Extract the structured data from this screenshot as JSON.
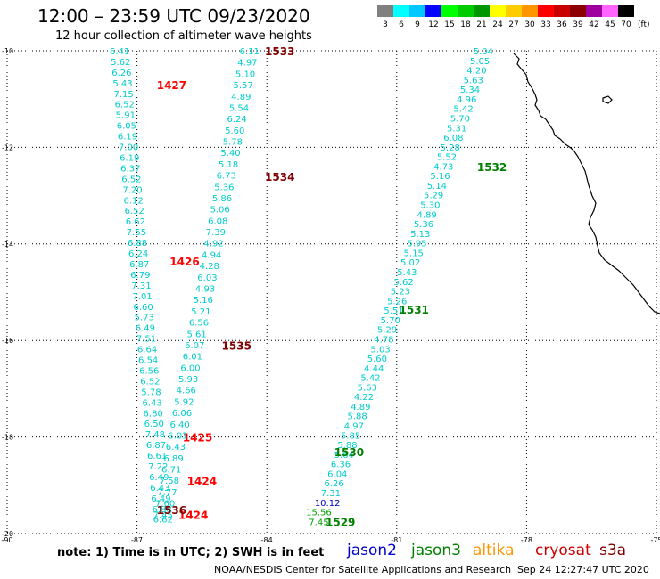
{
  "header": {
    "title": "12:00 – 23:59 UTC 09/23/2020",
    "subtitle": "12 hour collection of altimeter wave heights"
  },
  "legend": {
    "unit": "(ft)",
    "bins": [
      {
        "label": "3",
        "color": "#808080"
      },
      {
        "label": "6",
        "color": "#00ffff"
      },
      {
        "label": "9",
        "color": "#00c8ff"
      },
      {
        "label": "12",
        "color": "#0000ff"
      },
      {
        "label": "15",
        "color": "#00ff00"
      },
      {
        "label": "18",
        "color": "#00cc00"
      },
      {
        "label": "21",
        "color": "#009600"
      },
      {
        "label": "24",
        "color": "#ffff00"
      },
      {
        "label": "27",
        "color": "#ffcc00"
      },
      {
        "label": "30",
        "color": "#ff9600"
      },
      {
        "label": "33",
        "color": "#ff0000"
      },
      {
        "label": "36",
        "color": "#c80000"
      },
      {
        "label": "39",
        "color": "#8c0000"
      },
      {
        "label": "42",
        "color": "#a000a0"
      },
      {
        "label": "45",
        "color": "#ff64ff"
      },
      {
        "label": "70",
        "color": "#000000"
      }
    ]
  },
  "axes": {
    "lat": [
      {
        "label": "-10",
        "value": -10
      },
      {
        "label": "-12",
        "value": -12
      },
      {
        "label": "-14",
        "value": -14
      },
      {
        "label": "-16",
        "value": -16
      },
      {
        "label": "-18",
        "value": -18
      },
      {
        "label": "-20",
        "value": -20
      }
    ],
    "lon": [
      {
        "label": "-90",
        "value": -90
      },
      {
        "label": "-87",
        "value": -87
      },
      {
        "label": "-84",
        "value": -84
      },
      {
        "label": "-81",
        "value": -81
      },
      {
        "label": "-78",
        "value": -78
      },
      {
        "label": "-75",
        "value": -75
      }
    ]
  },
  "colors": {
    "cyan_swh": "#00cccc",
    "green_swh": "#00a000",
    "blue_swh": "#0000cc",
    "time_red": "#ff0000",
    "time_maroon": "#800000",
    "time_green": "#008000"
  },
  "tracks": [
    {
      "name": "track-1427-1424",
      "start": [
        -87.4,
        -10.0
      ],
      "end": [
        -86.4,
        -19.7
      ],
      "values": [
        "6.41",
        "5.62",
        "6.26",
        "5.43",
        "7.15",
        "6.52",
        "5.91",
        "6.05",
        "6.19",
        "7.00",
        "6.19",
        "6.37",
        "6.52",
        "7.20",
        "6.12",
        "6.52",
        "6.62",
        "7.55",
        "6.88",
        "6.24",
        "6.87",
        "6.79",
        "7.31",
        "7.01",
        "6.60",
        "5.73",
        "6.49",
        "7.51",
        "6.64",
        "6.54",
        "6.56",
        "6.52",
        "5.78",
        "6.43",
        "6.80",
        "6.50",
        "7.48",
        "6.87",
        "6.61",
        "7.22",
        "6.49",
        "6.43",
        "6.49",
        "6.88",
        "6.62"
      ],
      "color": "#00cccc",
      "times": [
        {
          "label": "1427",
          "at": [
            -86.2,
            -10.7
          ],
          "color": "#ff0000"
        },
        {
          "label": "1426",
          "at": [
            -85.9,
            -14.35
          ],
          "color": "#ff0000"
        },
        {
          "label": "1425",
          "at": [
            -85.6,
            -18.0
          ],
          "color": "#ff0000"
        },
        {
          "label": "1424",
          "at": [
            -85.5,
            -18.9
          ],
          "color": "#ff0000"
        },
        {
          "label": "1424",
          "at": [
            -85.7,
            -19.6
          ],
          "color": "#ff0000"
        }
      ]
    },
    {
      "name": "track-1533-1536",
      "start": [
        -84.4,
        -10.0
      ],
      "end": [
        -86.4,
        -19.6
      ],
      "values": [
        "6.11",
        "4.97",
        "5.10",
        "5.57",
        "4.89",
        "5.54",
        "6.24",
        "5.60",
        "5.78",
        "5.40",
        "5.18",
        "6.73",
        "5.36",
        "5.86",
        "5.06",
        "6.08",
        "7.39",
        "4.92",
        "4.94",
        "4.28",
        "6.03",
        "4.93",
        "5.16",
        "5.21",
        "6.56",
        "5.61",
        "6.07",
        "6.01",
        "6.00",
        "5.93",
        "4.66",
        "5.92",
        "6.06",
        "6.40",
        "6.01",
        "6.43",
        "6.89",
        "6.71",
        "7.58",
        "7.77",
        "7.60",
        "7.45"
      ],
      "color": "#00cccc",
      "times": [
        {
          "label": "1533",
          "at": [
            -83.7,
            -10.0
          ],
          "color": "#800000"
        },
        {
          "label": "1534",
          "at": [
            -83.7,
            -12.6
          ],
          "color": "#800000"
        },
        {
          "label": "1535",
          "at": [
            -84.7,
            -16.1
          ],
          "color": "#800000"
        },
        {
          "label": "1536",
          "at": [
            -86.2,
            -19.5
          ],
          "color": "#800000"
        }
      ]
    },
    {
      "name": "track-1532-1529",
      "start": [
        -79.0,
        -10.0
      ],
      "end": [
        -82.6,
        -19.35
      ],
      "values": [
        "5.04",
        "5.05",
        "4.20",
        "5.63",
        "5.34",
        "4.96",
        "5.42",
        "5.70",
        "5.31",
        "6.08",
        "5.28",
        "5.52",
        "4.73",
        "5.16",
        "5.14",
        "5.29",
        "5.30",
        "4.89",
        "5.36",
        "5.13",
        "5.95",
        "5.15",
        "5.02",
        "5.43",
        "5.62",
        "5.23",
        "5.26",
        "5.51",
        "5.70",
        "5.29",
        "4.78",
        "5.03",
        "5.60",
        "4.44",
        "5.42",
        "5.63",
        "4.22",
        "4.89",
        "5.88",
        "4.97",
        "5.85",
        "5.88",
        "5.64",
        "6.36",
        "6.04",
        "6.26",
        "7.31",
        "10.12"
      ],
      "color": "#00cccc",
      "tail": [
        {
          "label": "15.56",
          "at": [
            -82.8,
            -19.55
          ],
          "color": "#00a000"
        },
        {
          "label": "7.45",
          "at": [
            -82.8,
            -19.75
          ],
          "color": "#00a000"
        }
      ],
      "times": [
        {
          "label": "1532",
          "at": [
            -78.8,
            -12.4
          ],
          "color": "#008000"
        },
        {
          "label": "1531",
          "at": [
            -80.6,
            -15.35
          ],
          "color": "#008000"
        },
        {
          "label": "1530",
          "at": [
            -82.1,
            -18.3
          ],
          "color": "#008000"
        },
        {
          "label": "1529",
          "at": [
            -82.3,
            -19.75
          ],
          "color": "#008000"
        }
      ]
    }
  ],
  "footer": {
    "note": "note: 1) Time is in UTC; 2) SWH is in feet",
    "satellites": [
      {
        "name": "jason2",
        "color": "#0000cc"
      },
      {
        "name": "jason3",
        "color": "#008000"
      },
      {
        "name": "altika",
        "color": "#ff9600"
      },
      {
        "name": "cryosat",
        "color": "#cc0000"
      },
      {
        "name": "s3a",
        "color": "#800000"
      }
    ],
    "credit": "NOAA/NESDIS Center for Satellite Applications and Research",
    "timestamp": "Sep 24 12:27:47 UTC 2020"
  }
}
